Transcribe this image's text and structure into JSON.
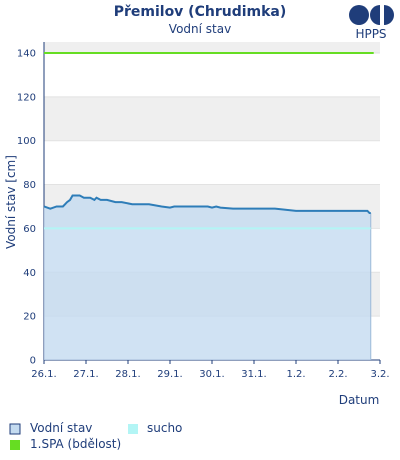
{
  "chart_data": {
    "type": "area",
    "title": "Přemilov (Chrudimka)",
    "subtitle": "Vodní stav",
    "xlabel": "Datum",
    "ylabel": "Vodní stav [cm]",
    "ylim": [
      0,
      145
    ],
    "yticks": [
      0,
      20,
      40,
      60,
      80,
      100,
      120,
      140
    ],
    "xlim": [
      0,
      7.8
    ],
    "xticks": [
      {
        "x": 0,
        "label": "26.1."
      },
      {
        "x": 1,
        "label": "27.1."
      },
      {
        "x": 2,
        "label": "28.1."
      },
      {
        "x": 3,
        "label": "29.1."
      },
      {
        "x": 4,
        "label": "30.1."
      },
      {
        "x": 5,
        "label": "31.1."
      },
      {
        "x": 6,
        "label": "1.2."
      },
      {
        "x": 7,
        "label": "2.2."
      },
      {
        "x": 8,
        "label": "3.2."
      }
    ],
    "grid": true,
    "series": [
      {
        "name": "Vodní stav",
        "color": "#2e7db8",
        "fill": "#c4dbf0",
        "x": [
          0,
          0.15,
          0.3,
          0.45,
          0.5,
          0.55,
          0.62,
          0.68,
          0.75,
          0.85,
          0.95,
          1.1,
          1.2,
          1.25,
          1.35,
          1.5,
          1.7,
          1.85,
          2.1,
          2.5,
          2.8,
          3.0,
          3.1,
          3.5,
          3.9,
          4.0,
          4.1,
          4.2,
          4.5,
          5.0,
          5.5,
          6.0,
          6.5,
          7.0,
          7.5,
          7.7,
          7.75,
          7.78
        ],
        "y": [
          70,
          69,
          70,
          70,
          71,
          72,
          73,
          75,
          75,
          75,
          74,
          74,
          73,
          74,
          73,
          73,
          72,
          72,
          71,
          71,
          70,
          69.5,
          70,
          70,
          70,
          69.5,
          70,
          69.5,
          69,
          69,
          69,
          68,
          68,
          68,
          68,
          68,
          67,
          67
        ]
      }
    ],
    "thresholds": [
      {
        "name": "1.SPA (bdělost)",
        "value": 140,
        "color": "#66dd22"
      },
      {
        "name": "sucho",
        "value": 60,
        "color": "#b3f5f5"
      }
    ],
    "legend": [
      {
        "label": "Vodní stav",
        "kind": "box-outline",
        "color": "#c4dbf0",
        "border": "#2e7db8"
      },
      {
        "label": "sucho",
        "kind": "box",
        "color": "#b3f5f5"
      },
      {
        "label": "1.SPA (bdělost)",
        "kind": "box",
        "color": "#66dd22"
      }
    ],
    "legend_position": "bottom"
  },
  "logo": {
    "text": "HPPS",
    "color": "#1f3d7a"
  }
}
